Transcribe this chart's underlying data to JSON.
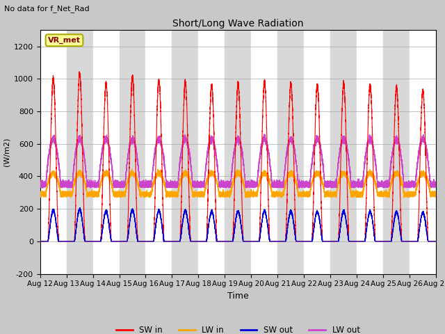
{
  "title": "Short/Long Wave Radiation",
  "suptitle": "No data for f_Net_Rad",
  "xlabel": "Time",
  "ylabel": "(W/m2)",
  "ylim": [
    -200,
    1300
  ],
  "yticks": [
    -200,
    0,
    200,
    400,
    600,
    800,
    1000,
    1200
  ],
  "num_days": 15,
  "start_day": 12,
  "num_points": 15000,
  "colors": {
    "SW_in": "#ff0000",
    "LW_in": "#ffa500",
    "SW_out": "#0000dd",
    "LW_out": "#cc44cc"
  },
  "legend_station": "VR_met",
  "SW_in_peak": 1000,
  "LW_in_base": 290,
  "LW_in_peak": 420,
  "SW_out_peak": 190,
  "LW_out_base": 350,
  "LW_out_peak": 630,
  "band_colors": [
    "#ffffff",
    "#d8d8d8"
  ],
  "background_color": "#c8c8c8",
  "figsize": [
    6.4,
    4.8
  ],
  "dpi": 100
}
